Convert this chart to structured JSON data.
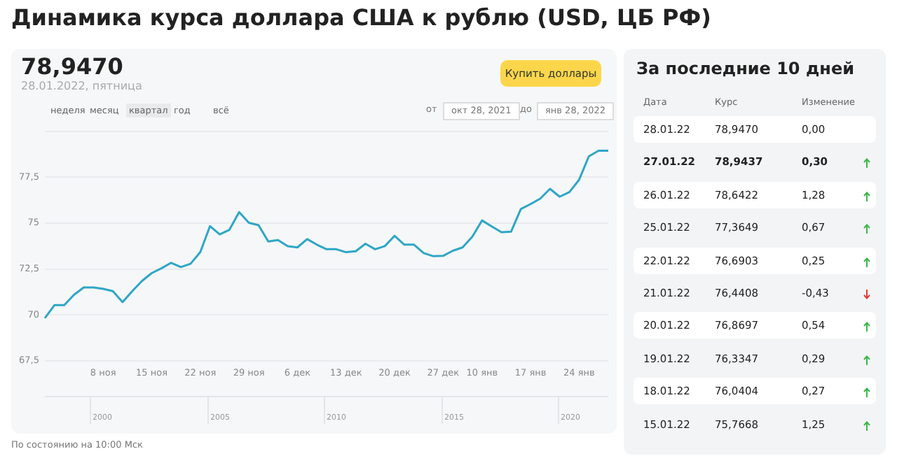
{
  "chart_data": [
    {
      "type": "line",
      "title": "Динамика курса доллара США к рублю (USD, ЦБ РФ)",
      "categories": [
        null,
        null,
        null,
        null,
        null,
        null,
        "8 ноя",
        null,
        null,
        null,
        null,
        "15 ноя",
        null,
        null,
        null,
        null,
        "22 ноя",
        null,
        null,
        null,
        null,
        "29 ноя",
        null,
        null,
        null,
        null,
        "6 дек",
        null,
        null,
        null,
        null,
        "13 дек",
        null,
        null,
        null,
        null,
        "20 дек",
        null,
        null,
        null,
        null,
        "27 дек",
        null,
        null,
        null,
        "10 янв",
        null,
        null,
        null,
        null,
        "17 янв",
        null,
        null,
        null,
        null,
        "24 янв",
        null,
        null,
        null
      ],
      "series": [
        {
          "color": "#2ea6c6",
          "values": [
            69.83,
            70.54,
            70.54,
            71.1,
            71.5,
            71.5,
            71.42,
            71.3,
            70.7,
            71.3,
            71.85,
            72.28,
            72.54,
            72.84,
            72.61,
            72.79,
            73.42,
            74.84,
            74.39,
            74.64,
            75.6,
            75.02,
            74.89,
            74.0,
            74.08,
            73.75,
            73.68,
            74.13,
            73.83,
            73.58,
            73.58,
            73.42,
            73.47,
            73.88,
            73.58,
            73.75,
            74.31,
            73.83,
            73.83,
            73.37,
            73.2,
            73.22,
            73.5,
            73.68,
            74.26,
            75.15,
            74.82,
            74.51,
            74.54,
            75.7668,
            76.0404,
            76.3347,
            76.8697,
            76.4408,
            76.6903,
            77.3649,
            78.6422,
            78.9437,
            78.947
          ]
        }
      ],
      "ylim": [
        67.5,
        80
      ],
      "yticks": [
        {
          "value": 67.5,
          "label": "67,5"
        },
        70,
        {
          "value": 72.5,
          "label": "72,5"
        },
        75,
        {
          "value": 77.5,
          "label": "77,5"
        },
        {
          "value": 80,
          "label": null
        }
      ],
      "grid": "y",
      "marker": "none",
      "line_style": "solid",
      "annotations": [
        "78,9470",
        "28.01.2022, пятница",
        "Купить доллары",
        "неделя",
        "месяц",
        "квартал",
        "год",
        "всё",
        "от",
        "окт 28, 2021",
        "до",
        "янв 28, 2022",
        "2000",
        "2005",
        "2010",
        "2015",
        "2020",
        "По состоянию на 10:00 Мск"
      ]
    },
    {
      "type": "other",
      "title": "За последние 10 дней",
      "annotations": [
        "Дата",
        "Курс",
        "Изменение",
        "28.01.22",
        "78,9470",
        "0,00",
        "27.01.22",
        "78,9437",
        "0,30",
        "26.01.22",
        "78,6422",
        "1,28",
        "25.01.22",
        "77,3649",
        "0,67",
        "22.01.22",
        "76,6903",
        "0,25",
        "21.01.22",
        "76,4408",
        "-0,43",
        "20.01.22",
        "76,8697",
        "0,54",
        "19.01.22",
        "76,3347",
        "0,29",
        "18.01.22",
        "76,0404",
        "0,27",
        "15.01.22",
        "75,7668",
        "1,25"
      ]
    }
  ]
}
